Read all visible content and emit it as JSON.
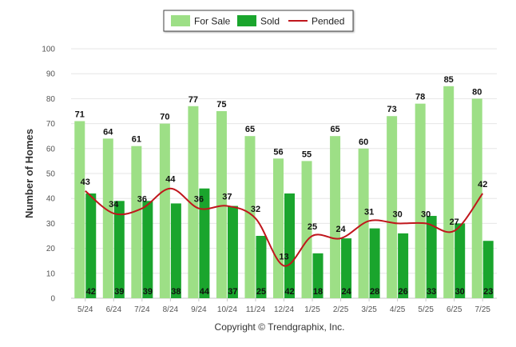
{
  "chart_data": {
    "type": "bar",
    "categories": [
      "5/24",
      "6/24",
      "7/24",
      "8/24",
      "9/24",
      "10/24",
      "11/24",
      "12/24",
      "1/25",
      "2/25",
      "3/25",
      "4/25",
      "5/25",
      "6/25",
      "7/25"
    ],
    "series": [
      {
        "name": "For Sale",
        "type": "bar",
        "color": "#9ddf86",
        "values": [
          71,
          64,
          61,
          70,
          77,
          75,
          65,
          56,
          55,
          65,
          60,
          73,
          78,
          85,
          80
        ]
      },
      {
        "name": "Sold",
        "type": "bar",
        "color": "#1aa52d",
        "values": [
          42,
          39,
          39,
          38,
          44,
          37,
          25,
          42,
          18,
          24,
          28,
          26,
          33,
          30,
          23
        ]
      },
      {
        "name": "Pended",
        "type": "line",
        "color": "#c0161c",
        "values": [
          43,
          34,
          36,
          44,
          36,
          37,
          32,
          13,
          25,
          24,
          31,
          30,
          30,
          27,
          42
        ]
      }
    ],
    "ylabel": "Number of Homes",
    "xlabel": "",
    "ylim": [
      0,
      100
    ],
    "yticks": [
      0,
      10,
      20,
      30,
      40,
      50,
      60,
      70,
      80,
      90,
      100
    ],
    "grid": true,
    "legend_position": "top-center"
  },
  "footer": {
    "credit": "Copyright © Trendgraphix, Inc."
  }
}
